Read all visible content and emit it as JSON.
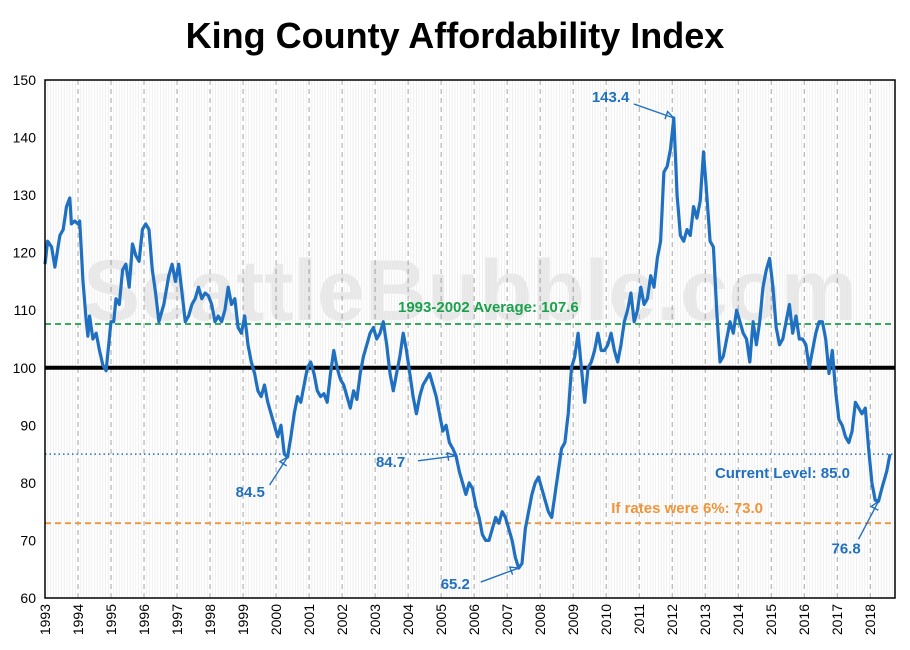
{
  "chart_data": {
    "type": "line",
    "title": "King County Affordability Index",
    "xlabel": "",
    "ylabel": "",
    "xlim": [
      1993,
      2018.75
    ],
    "ylim": [
      60,
      150
    ],
    "yticks": [
      60,
      70,
      80,
      90,
      100,
      110,
      120,
      130,
      140,
      150
    ],
    "xticks": [
      "1993",
      "1994",
      "1995",
      "1996",
      "1997",
      "1998",
      "1999",
      "2000",
      "2001",
      "2002",
      "2003",
      "2004",
      "2005",
      "2006",
      "2007",
      "2008",
      "2009",
      "2010",
      "2011",
      "2012",
      "2013",
      "2014",
      "2015",
      "2016",
      "2017",
      "2018"
    ],
    "grid": {
      "vertical_dashed": true,
      "horizontal": false
    },
    "watermark": "SeattleBubble.com",
    "series": [
      {
        "color": "#1f70c1",
        "points": [
          [
            1993.0,
            118
          ],
          [
            1993.08,
            122
          ],
          [
            1993.2,
            121
          ],
          [
            1993.3,
            117.5
          ],
          [
            1993.45,
            123
          ],
          [
            1993.55,
            124
          ],
          [
            1993.65,
            128
          ],
          [
            1993.75,
            129.5
          ],
          [
            1993.8,
            125
          ],
          [
            1993.9,
            125.5
          ],
          [
            1994.0,
            125
          ],
          [
            1994.05,
            125.5
          ],
          [
            1994.15,
            115
          ],
          [
            1994.25,
            108
          ],
          [
            1994.3,
            105.5
          ],
          [
            1994.35,
            109
          ],
          [
            1994.45,
            105
          ],
          [
            1994.55,
            106
          ],
          [
            1994.65,
            103
          ],
          [
            1994.75,
            100.5
          ],
          [
            1994.85,
            99.5
          ],
          [
            1995.0,
            108
          ],
          [
            1995.08,
            108
          ],
          [
            1995.15,
            112
          ],
          [
            1995.25,
            111
          ],
          [
            1995.35,
            117
          ],
          [
            1995.45,
            118
          ],
          [
            1995.55,
            114
          ],
          [
            1995.65,
            121.5
          ],
          [
            1995.75,
            119.5
          ],
          [
            1995.85,
            118.5
          ],
          [
            1995.95,
            124
          ],
          [
            1996.05,
            125
          ],
          [
            1996.15,
            124
          ],
          [
            1996.25,
            117
          ],
          [
            1996.35,
            113
          ],
          [
            1996.45,
            108
          ],
          [
            1996.6,
            111
          ],
          [
            1996.75,
            116
          ],
          [
            1996.85,
            118
          ],
          [
            1996.95,
            115
          ],
          [
            1997.05,
            118
          ],
          [
            1997.15,
            113
          ],
          [
            1997.25,
            108
          ],
          [
            1997.35,
            109
          ],
          [
            1997.45,
            111
          ],
          [
            1997.55,
            112
          ],
          [
            1997.65,
            114
          ],
          [
            1997.75,
            112
          ],
          [
            1997.85,
            113
          ],
          [
            1997.95,
            112.5
          ],
          [
            1998.05,
            111
          ],
          [
            1998.15,
            108
          ],
          [
            1998.25,
            109
          ],
          [
            1998.35,
            108
          ],
          [
            1998.45,
            110
          ],
          [
            1998.55,
            114
          ],
          [
            1998.65,
            111
          ],
          [
            1998.75,
            112
          ],
          [
            1998.85,
            107
          ],
          [
            1998.95,
            106
          ],
          [
            1999.05,
            109
          ],
          [
            1999.15,
            104
          ],
          [
            1999.25,
            101
          ],
          [
            1999.35,
            99
          ],
          [
            1999.45,
            96
          ],
          [
            1999.55,
            95
          ],
          [
            1999.65,
            97
          ],
          [
            1999.75,
            94
          ],
          [
            1999.85,
            92
          ],
          [
            1999.95,
            90
          ],
          [
            2000.05,
            88
          ],
          [
            2000.15,
            90
          ],
          [
            2000.25,
            85
          ],
          [
            2000.35,
            84.5
          ],
          [
            2000.45,
            88
          ],
          [
            2000.55,
            92
          ],
          [
            2000.65,
            95
          ],
          [
            2000.75,
            94
          ],
          [
            2000.85,
            97
          ],
          [
            2000.95,
            100
          ],
          [
            2001.05,
            101
          ],
          [
            2001.15,
            99
          ],
          [
            2001.25,
            96
          ],
          [
            2001.35,
            95
          ],
          [
            2001.45,
            95.5
          ],
          [
            2001.55,
            94
          ],
          [
            2001.65,
            99
          ],
          [
            2001.75,
            103
          ],
          [
            2001.85,
            100
          ],
          [
            2001.95,
            98
          ],
          [
            2002.05,
            97
          ],
          [
            2002.15,
            95
          ],
          [
            2002.25,
            93
          ],
          [
            2002.35,
            96
          ],
          [
            2002.45,
            94.5
          ],
          [
            2002.55,
            99
          ],
          [
            2002.65,
            102
          ],
          [
            2002.75,
            104
          ],
          [
            2002.85,
            106
          ],
          [
            2002.95,
            107
          ],
          [
            2003.05,
            105
          ],
          [
            2003.15,
            106
          ],
          [
            2003.25,
            108
          ],
          [
            2003.35,
            104
          ],
          [
            2003.45,
            99
          ],
          [
            2003.55,
            96
          ],
          [
            2003.65,
            99
          ],
          [
            2003.75,
            102
          ],
          [
            2003.85,
            106
          ],
          [
            2003.95,
            103
          ],
          [
            2004.05,
            99
          ],
          [
            2004.15,
            95
          ],
          [
            2004.25,
            92
          ],
          [
            2004.35,
            95
          ],
          [
            2004.45,
            97
          ],
          [
            2004.55,
            98
          ],
          [
            2004.65,
            99
          ],
          [
            2004.75,
            97
          ],
          [
            2004.85,
            95
          ],
          [
            2004.95,
            92
          ],
          [
            2005.05,
            89
          ],
          [
            2005.15,
            90
          ],
          [
            2005.25,
            87
          ],
          [
            2005.35,
            86
          ],
          [
            2005.45,
            84.7
          ],
          [
            2005.55,
            82
          ],
          [
            2005.65,
            80
          ],
          [
            2005.75,
            78
          ],
          [
            2005.85,
            80
          ],
          [
            2005.95,
            79
          ],
          [
            2006.05,
            76
          ],
          [
            2006.15,
            74
          ],
          [
            2006.25,
            71
          ],
          [
            2006.35,
            70
          ],
          [
            2006.45,
            70
          ],
          [
            2006.55,
            72
          ],
          [
            2006.65,
            74
          ],
          [
            2006.75,
            73
          ],
          [
            2006.85,
            75
          ],
          [
            2006.95,
            74
          ],
          [
            2007.05,
            72
          ],
          [
            2007.15,
            70
          ],
          [
            2007.25,
            67
          ],
          [
            2007.35,
            65.2
          ],
          [
            2007.45,
            66
          ],
          [
            2007.55,
            72
          ],
          [
            2007.65,
            75
          ],
          [
            2007.75,
            78
          ],
          [
            2007.85,
            80
          ],
          [
            2007.95,
            81
          ],
          [
            2008.05,
            79
          ],
          [
            2008.15,
            77
          ],
          [
            2008.25,
            75
          ],
          [
            2008.35,
            74
          ],
          [
            2008.45,
            78
          ],
          [
            2008.55,
            82
          ],
          [
            2008.65,
            86
          ],
          [
            2008.75,
            87
          ],
          [
            2008.85,
            92
          ],
          [
            2008.95,
            100
          ],
          [
            2009.05,
            102
          ],
          [
            2009.15,
            106
          ],
          [
            2009.25,
            100
          ],
          [
            2009.35,
            94
          ],
          [
            2009.45,
            100
          ],
          [
            2009.55,
            101
          ],
          [
            2009.65,
            103
          ],
          [
            2009.75,
            106
          ],
          [
            2009.85,
            103
          ],
          [
            2009.95,
            103
          ],
          [
            2010.05,
            104
          ],
          [
            2010.15,
            106
          ],
          [
            2010.25,
            103
          ],
          [
            2010.35,
            101
          ],
          [
            2010.45,
            104
          ],
          [
            2010.55,
            108
          ],
          [
            2010.65,
            110
          ],
          [
            2010.75,
            113
          ],
          [
            2010.85,
            108
          ],
          [
            2010.95,
            110
          ],
          [
            2011.05,
            114
          ],
          [
            2011.15,
            111
          ],
          [
            2011.25,
            112
          ],
          [
            2011.35,
            116
          ],
          [
            2011.45,
            114
          ],
          [
            2011.55,
            119
          ],
          [
            2011.65,
            122
          ],
          [
            2011.75,
            134
          ],
          [
            2011.85,
            135
          ],
          [
            2011.95,
            138
          ],
          [
            2012.05,
            143.4
          ],
          [
            2012.15,
            130
          ],
          [
            2012.25,
            123
          ],
          [
            2012.35,
            122
          ],
          [
            2012.45,
            124
          ],
          [
            2012.55,
            123
          ],
          [
            2012.65,
            128
          ],
          [
            2012.75,
            126
          ],
          [
            2012.85,
            129
          ],
          [
            2012.95,
            137.5
          ],
          [
            2013.05,
            130
          ],
          [
            2013.15,
            122
          ],
          [
            2013.25,
            121
          ],
          [
            2013.35,
            110
          ],
          [
            2013.45,
            101
          ],
          [
            2013.55,
            102
          ],
          [
            2013.65,
            105
          ],
          [
            2013.75,
            108
          ],
          [
            2013.85,
            106
          ],
          [
            2013.95,
            110
          ],
          [
            2014.05,
            108
          ],
          [
            2014.15,
            106
          ],
          [
            2014.25,
            105
          ],
          [
            2014.35,
            101
          ],
          [
            2014.45,
            108
          ],
          [
            2014.55,
            104
          ],
          [
            2014.65,
            108
          ],
          [
            2014.75,
            114
          ],
          [
            2014.85,
            117
          ],
          [
            2014.95,
            119
          ],
          [
            2015.05,
            114
          ],
          [
            2015.15,
            107
          ],
          [
            2015.25,
            104
          ],
          [
            2015.35,
            105
          ],
          [
            2015.45,
            108
          ],
          [
            2015.55,
            111
          ],
          [
            2015.65,
            106
          ],
          [
            2015.75,
            109
          ],
          [
            2015.85,
            105
          ],
          [
            2015.95,
            105
          ],
          [
            2016.05,
            104
          ],
          [
            2016.15,
            100
          ],
          [
            2016.25,
            103
          ],
          [
            2016.35,
            106
          ],
          [
            2016.45,
            108
          ],
          [
            2016.55,
            108
          ],
          [
            2016.65,
            105
          ],
          [
            2016.75,
            99
          ],
          [
            2016.85,
            103
          ],
          [
            2016.95,
            96
          ],
          [
            2017.05,
            91
          ],
          [
            2017.15,
            90
          ],
          [
            2017.25,
            88
          ],
          [
            2017.35,
            87
          ],
          [
            2017.45,
            89
          ],
          [
            2017.55,
            94
          ],
          [
            2017.65,
            93
          ],
          [
            2017.75,
            92
          ],
          [
            2017.85,
            93
          ],
          [
            2017.95,
            86
          ],
          [
            2018.05,
            80
          ],
          [
            2018.15,
            77
          ],
          [
            2018.25,
            76.8
          ],
          [
            2018.35,
            79
          ],
          [
            2018.5,
            82
          ],
          [
            2018.6,
            85
          ]
        ]
      }
    ],
    "reference_lines": [
      {
        "value": 100,
        "color": "#000000",
        "style": "solid",
        "label": ""
      },
      {
        "value": 107.6,
        "color": "#1aa14b",
        "style": "dashed",
        "label": "1993-2002 Average: 107.6"
      },
      {
        "value": 85.0,
        "color": "#1f70c1",
        "style": "dotted",
        "label": "Current Level: 85.0"
      },
      {
        "value": 73.0,
        "color": "#f0953a",
        "style": "dashed",
        "label": "If rates were 6%: 73.0"
      }
    ],
    "annotations": [
      {
        "text": "143.4",
        "x": 2012.05,
        "y": 143.4
      },
      {
        "text": "84.5",
        "x": 2000.35,
        "y": 84.5
      },
      {
        "text": "84.7",
        "x": 2005.45,
        "y": 84.7
      },
      {
        "text": "65.2",
        "x": 2007.35,
        "y": 65.2
      },
      {
        "text": "76.8",
        "x": 2018.25,
        "y": 76.8
      }
    ]
  }
}
